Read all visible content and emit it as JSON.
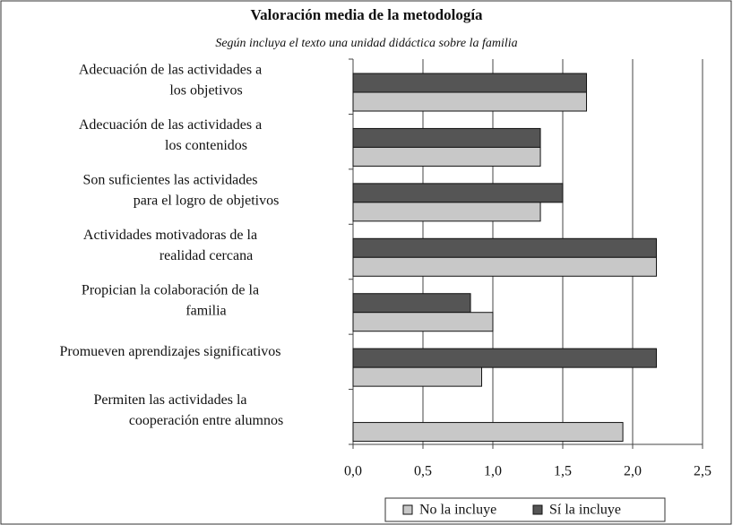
{
  "chart_data": {
    "type": "bar",
    "orientation": "horizontal",
    "title": "Valoración media de la metodología",
    "subtitle": "Según incluya el texto una unidad didáctica sobre la familia",
    "categories": [
      [
        "Adecuación de las actividades a",
        "los objetivos"
      ],
      [
        "Adecuación de las actividades a",
        "los contenidos"
      ],
      [
        "Son suficientes las actividades",
        "para el logro de objetivos"
      ],
      [
        "Actividades motivadoras de la",
        "realidad cercana"
      ],
      [
        "Propician la colaboración de la",
        "familia"
      ],
      [
        "Promueven aprendizajes significativos"
      ],
      [
        "Permiten las actividades la",
        "cooperación entre alumnos"
      ]
    ],
    "series": [
      {
        "name": "Sí la incluye",
        "color": "#555555",
        "values": [
          1.67,
          1.34,
          1.5,
          2.17,
          0.84,
          2.17,
          null
        ]
      },
      {
        "name": "No la incluye",
        "color": "#c8c8c8",
        "values": [
          1.67,
          1.34,
          1.34,
          2.17,
          1.0,
          0.92,
          1.93
        ]
      }
    ],
    "xlim": [
      0,
      2.5
    ],
    "xticks": [
      {
        "value": 0,
        "label": "0,0"
      },
      {
        "value": 0.5,
        "label": "0,5"
      },
      {
        "value": 1,
        "label": "1,0"
      },
      {
        "value": 1.5,
        "label": "1,5"
      },
      {
        "value": 2,
        "label": "2,0"
      },
      {
        "value": 2.5,
        "label": "2,5"
      }
    ],
    "grid": true,
    "legend": "bottom"
  }
}
